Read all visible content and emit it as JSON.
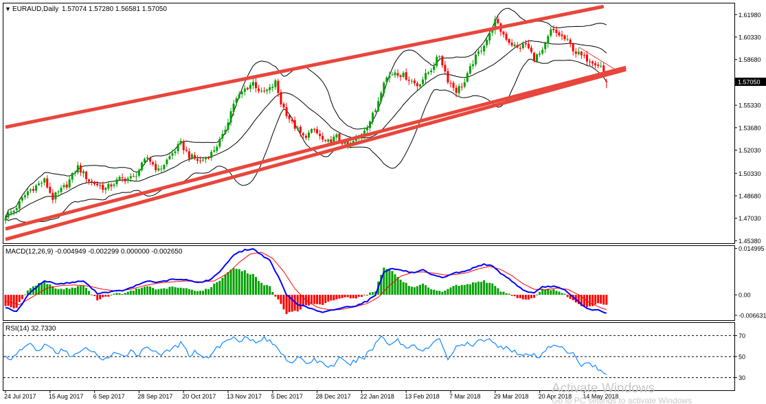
{
  "header": {
    "symbol_text": "EURAUD,Daily",
    "ohlc_text": "1.57074 1.57280 1.56581 1.57050",
    "menu_arrow": "▼"
  },
  "colors": {
    "bull_candle": "#00a000",
    "bear_candle": "#ff0000",
    "channel": "#e8463c",
    "bollinger": "#000000",
    "macd_line": "#0000ff",
    "signal_line": "#ff0000",
    "rsi_line": "#1e90ff",
    "price_tag_bg": "#000000",
    "price_tag_text": "#ffffff"
  },
  "chart_data": [
    {
      "name": "price",
      "type": "candlestick",
      "title": "EURAUD,Daily",
      "yaxis": {
        "range": [
          1.452,
          1.628
        ],
        "ticks": [
          {
            "value": 1.6198,
            "label": "1.61980"
          },
          {
            "value": 1.6033,
            "label": "1.60330"
          },
          {
            "value": 1.5868,
            "label": "1.58680"
          },
          {
            "value": 1.5533,
            "label": "1.55330"
          },
          {
            "value": 1.5368,
            "label": "1.53680"
          },
          {
            "value": 1.5203,
            "label": "1.52030"
          },
          {
            "value": 1.5033,
            "label": "1.50330"
          },
          {
            "value": 1.4868,
            "label": "1.48680"
          },
          {
            "value": 1.4703,
            "label": "1.47030"
          },
          {
            "value": 1.4538,
            "label": "1.45380"
          }
        ],
        "current_price": {
          "value": 1.5705,
          "label": "1.57050"
        }
      },
      "xaxis": {
        "ticks": [
          {
            "bar": 0,
            "label": "24 Jul 2017"
          },
          {
            "bar": 16,
            "label": "15 Aug 2017"
          },
          {
            "bar": 32,
            "label": "6 Sep 2017"
          },
          {
            "bar": 48,
            "label": "28 Sep 2017"
          },
          {
            "bar": 64,
            "label": "20 Oct 2017"
          },
          {
            "bar": 80,
            "label": "13 Nov 2017"
          },
          {
            "bar": 96,
            "label": "5 Dec 2017"
          },
          {
            "bar": 112,
            "label": "28 Dec 2017"
          },
          {
            "bar": 128,
            "label": "22 Jan 2018"
          },
          {
            "bar": 144,
            "label": "13 Feb 2018"
          },
          {
            "bar": 160,
            "label": "7 Mar 2018"
          },
          {
            "bar": 176,
            "label": "29 Mar 2018"
          },
          {
            "bar": 192,
            "label": "20 Apr 2018"
          },
          {
            "bar": 208,
            "label": "14 May 2018"
          }
        ]
      },
      "close_anchors": [
        [
          0,
          1.472
        ],
        [
          3,
          1.476
        ],
        [
          8,
          1.49
        ],
        [
          14,
          1.498
        ],
        [
          17,
          1.485
        ],
        [
          22,
          1.495
        ],
        [
          26,
          1.508
        ],
        [
          30,
          1.498
        ],
        [
          36,
          1.492
        ],
        [
          41,
          1.499
        ],
        [
          46,
          1.5
        ],
        [
          51,
          1.515
        ],
        [
          55,
          1.505
        ],
        [
          60,
          1.518
        ],
        [
          63,
          1.525
        ],
        [
          66,
          1.516
        ],
        [
          70,
          1.512
        ],
        [
          74,
          1.518
        ],
        [
          78,
          1.53
        ],
        [
          82,
          1.555
        ],
        [
          86,
          1.565
        ],
        [
          89,
          1.57
        ],
        [
          92,
          1.562
        ],
        [
          95,
          1.565
        ],
        [
          97,
          1.57
        ],
        [
          99,
          1.555
        ],
        [
          103,
          1.54
        ],
        [
          107,
          1.53
        ],
        [
          111,
          1.535
        ],
        [
          115,
          1.525
        ],
        [
          119,
          1.53
        ],
        [
          123,
          1.523
        ],
        [
          127,
          1.53
        ],
        [
          131,
          1.542
        ],
        [
          133,
          1.55
        ],
        [
          136,
          1.572
        ],
        [
          140,
          1.578
        ],
        [
          144,
          1.574
        ],
        [
          148,
          1.568
        ],
        [
          151,
          1.575
        ],
        [
          153,
          1.58
        ],
        [
          156,
          1.59
        ],
        [
          159,
          1.572
        ],
        [
          162,
          1.564
        ],
        [
          165,
          1.57
        ],
        [
          168,
          1.585
        ],
        [
          171,
          1.595
        ],
        [
          174,
          1.605
        ],
        [
          176,
          1.615
        ],
        [
          178,
          1.608
        ],
        [
          181,
          1.6
        ],
        [
          184,
          1.595
        ],
        [
          187,
          1.598
        ],
        [
          190,
          1.588
        ],
        [
          193,
          1.592
        ],
        [
          196,
          1.608
        ],
        [
          199,
          1.605
        ],
        [
          202,
          1.6
        ],
        [
          205,
          1.592
        ],
        [
          208,
          1.588
        ],
        [
          211,
          1.586
        ],
        [
          214,
          1.582
        ],
        [
          216,
          1.5705
        ]
      ],
      "channel_lines": [
        {
          "from": [
            0,
            1.5372
          ],
          "to": [
            215,
            1.6258
          ]
        },
        {
          "from": [
            0,
            1.4625
          ],
          "to": [
            223,
            1.581
          ]
        },
        {
          "from": [
            0,
            1.4548
          ],
          "to": [
            223,
            1.5795
          ]
        }
      ],
      "trend_line": {
        "from": [
          206,
          1.596
        ],
        "to": [
          221,
          1.5772
        ]
      }
    },
    {
      "name": "macd",
      "type": "histogram+line",
      "label": "MACD(12,26,9) -0.004949 -0.002299 0.000000 -0.002650",
      "yaxis": {
        "range": [
          -0.0082,
          0.0158
        ],
        "ticks": [
          {
            "value": 0.014995,
            "label": "0.014995"
          },
          {
            "value": 0.0,
            "label": "0.00"
          },
          {
            "value": -0.006631,
            "label": "-0.006631"
          }
        ]
      },
      "macd_anchors": [
        [
          0,
          -0.004
        ],
        [
          4,
          -0.0055
        ],
        [
          9,
          0.001
        ],
        [
          14,
          0.0045
        ],
        [
          19,
          0.0035
        ],
        [
          24,
          0.004
        ],
        [
          28,
          0.0045
        ],
        [
          33,
          0.0005
        ],
        [
          38,
          0.001
        ],
        [
          43,
          0.0015
        ],
        [
          47,
          0.003
        ],
        [
          51,
          0.0045
        ],
        [
          55,
          0.004
        ],
        [
          60,
          0.005
        ],
        [
          65,
          0.0048
        ],
        [
          70,
          0.004
        ],
        [
          74,
          0.005
        ],
        [
          78,
          0.0085
        ],
        [
          82,
          0.013
        ],
        [
          86,
          0.0145
        ],
        [
          89,
          0.0148
        ],
        [
          92,
          0.013
        ],
        [
          95,
          0.011
        ],
        [
          98,
          0.006
        ],
        [
          101,
          0.0
        ],
        [
          105,
          -0.003
        ],
        [
          110,
          -0.0045
        ],
        [
          114,
          -0.0058
        ],
        [
          118,
          -0.0048
        ],
        [
          122,
          -0.004
        ],
        [
          126,
          -0.0035
        ],
        [
          130,
          -0.002
        ],
        [
          133,
          0.0
        ],
        [
          136,
          0.0075
        ],
        [
          139,
          0.0085
        ],
        [
          143,
          0.0078
        ],
        [
          147,
          0.007
        ],
        [
          150,
          0.008
        ],
        [
          153,
          0.0065
        ],
        [
          157,
          0.0055
        ],
        [
          161,
          0.007
        ],
        [
          165,
          0.0075
        ],
        [
          169,
          0.009
        ],
        [
          172,
          0.01
        ],
        [
          175,
          0.0092
        ],
        [
          178,
          0.007
        ],
        [
          182,
          0.0045
        ],
        [
          186,
          0.0015
        ],
        [
          190,
          0.0005
        ],
        [
          193,
          0.0025
        ],
        [
          197,
          0.0028
        ],
        [
          201,
          0.0015
        ],
        [
          205,
          -0.0015
        ],
        [
          209,
          -0.0045
        ],
        [
          213,
          -0.005
        ],
        [
          216,
          -0.006
        ]
      ],
      "signal_anchors": [
        [
          0,
          -0.002
        ],
        [
          5,
          -0.0032
        ],
        [
          10,
          -0.0005
        ],
        [
          15,
          0.0022
        ],
        [
          20,
          0.003
        ],
        [
          25,
          0.0032
        ],
        [
          30,
          0.0028
        ],
        [
          35,
          0.0018
        ],
        [
          40,
          0.0012
        ],
        [
          45,
          0.0018
        ],
        [
          50,
          0.003
        ],
        [
          55,
          0.0038
        ],
        [
          60,
          0.0042
        ],
        [
          65,
          0.0045
        ],
        [
          70,
          0.0042
        ],
        [
          75,
          0.0045
        ],
        [
          80,
          0.007
        ],
        [
          84,
          0.0105
        ],
        [
          88,
          0.0132
        ],
        [
          92,
          0.0138
        ],
        [
          96,
          0.0118
        ],
        [
          100,
          0.0075
        ],
        [
          104,
          0.002
        ],
        [
          108,
          -0.0018
        ],
        [
          112,
          -0.004
        ],
        [
          116,
          -0.0048
        ],
        [
          120,
          -0.0048
        ],
        [
          125,
          -0.004
        ],
        [
          130,
          -0.0028
        ],
        [
          134,
          -0.0008
        ],
        [
          138,
          0.003
        ],
        [
          142,
          0.006
        ],
        [
          146,
          0.0072
        ],
        [
          150,
          0.0074
        ],
        [
          154,
          0.007
        ],
        [
          158,
          0.0064
        ],
        [
          162,
          0.0066
        ],
        [
          166,
          0.0072
        ],
        [
          170,
          0.0084
        ],
        [
          174,
          0.0092
        ],
        [
          178,
          0.0082
        ],
        [
          182,
          0.0062
        ],
        [
          186,
          0.0036
        ],
        [
          190,
          0.0018
        ],
        [
          194,
          0.0016
        ],
        [
          198,
          0.0022
        ],
        [
          202,
          0.0018
        ],
        [
          206,
          0.0
        ],
        [
          210,
          -0.0026
        ],
        [
          214,
          -0.0042
        ],
        [
          216,
          -0.0048
        ]
      ]
    },
    {
      "name": "rsi",
      "type": "line",
      "label": "RSI(14) 32.7330",
      "yaxis": {
        "range": [
          18,
          82
        ],
        "ticks": [
          {
            "value": 70,
            "label": "70"
          },
          {
            "value": 50,
            "label": "50"
          },
          {
            "value": 30,
            "label": "30"
          }
        ],
        "dashed_levels": [
          70,
          50,
          30
        ]
      },
      "rsi_anchors": [
        [
          0,
          50
        ],
        [
          3,
          48
        ],
        [
          6,
          58
        ],
        [
          9,
          62
        ],
        [
          12,
          55
        ],
        [
          15,
          63
        ],
        [
          18,
          52
        ],
        [
          21,
          57
        ],
        [
          24,
          50
        ],
        [
          27,
          54
        ],
        [
          30,
          58
        ],
        [
          33,
          50
        ],
        [
          36,
          48
        ],
        [
          39,
          52
        ],
        [
          42,
          50
        ],
        [
          45,
          56
        ],
        [
          48,
          52
        ],
        [
          51,
          60
        ],
        [
          54,
          55
        ],
        [
          57,
          52
        ],
        [
          60,
          58
        ],
        [
          63,
          62
        ],
        [
          66,
          52
        ],
        [
          69,
          55
        ],
        [
          72,
          48
        ],
        [
          75,
          56
        ],
        [
          78,
          62
        ],
        [
          81,
          68
        ],
        [
          84,
          66
        ],
        [
          87,
          70
        ],
        [
          90,
          62
        ],
        [
          93,
          68
        ],
        [
          96,
          62
        ],
        [
          99,
          55
        ],
        [
          102,
          45
        ],
        [
          105,
          48
        ],
        [
          108,
          44
        ],
        [
          111,
          47
        ],
        [
          114,
          44
        ],
        [
          117,
          40
        ],
        [
          120,
          48
        ],
        [
          123,
          42
        ],
        [
          126,
          46
        ],
        [
          129,
          50
        ],
        [
          132,
          58
        ],
        [
          135,
          70
        ],
        [
          138,
          62
        ],
        [
          141,
          66
        ],
        [
          144,
          58
        ],
        [
          147,
          62
        ],
        [
          150,
          55
        ],
        [
          153,
          60
        ],
        [
          156,
          68
        ],
        [
          159,
          48
        ],
        [
          162,
          58
        ],
        [
          165,
          62
        ],
        [
          168,
          60
        ],
        [
          171,
          66
        ],
        [
          174,
          68
        ],
        [
          177,
          58
        ],
        [
          180,
          60
        ],
        [
          183,
          55
        ],
        [
          186,
          50
        ],
        [
          189,
          52
        ],
        [
          192,
          48
        ],
        [
          195,
          60
        ],
        [
          198,
          62
        ],
        [
          201,
          55
        ],
        [
          204,
          52
        ],
        [
          207,
          42
        ],
        [
          210,
          45
        ],
        [
          213,
          38
        ],
        [
          216,
          33
        ]
      ]
    }
  ],
  "watermark": {
    "line1": "Activate Windows",
    "line2": "Go to PC settings to activate Windows"
  }
}
